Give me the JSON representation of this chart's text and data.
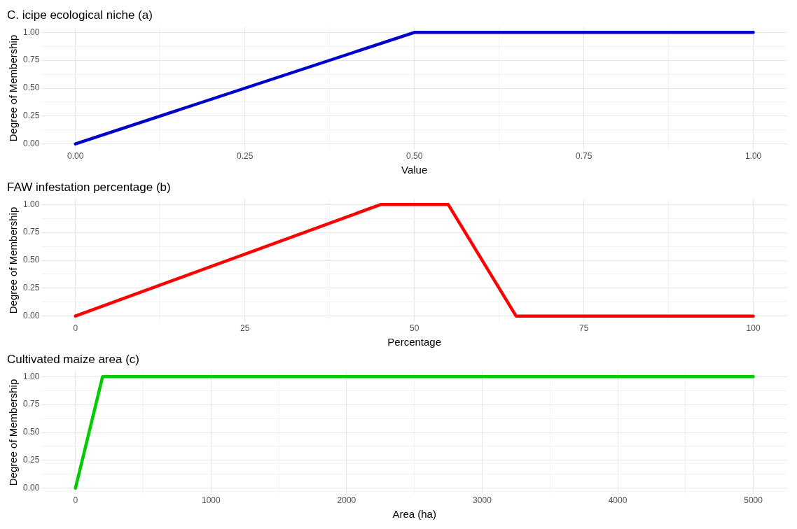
{
  "chart_data": [
    {
      "type": "line",
      "title": "C. icipe ecological niche (a)",
      "xlabel": "Value",
      "ylabel": "Degree of Membership",
      "grid": true,
      "line_style": "solid",
      "marker": "none",
      "series": [
        {
          "color": "#0000cd",
          "x": [
            0,
            0.5,
            1
          ],
          "values": [
            0,
            1,
            1
          ]
        }
      ],
      "xlim": [
        -0.05,
        1.05
      ],
      "xticks": [
        {
          "value": 0,
          "label": "0.00"
        },
        {
          "value": 0.125,
          "label": null
        },
        {
          "value": 0.25,
          "label": "0.25"
        },
        {
          "value": 0.375,
          "label": null
        },
        {
          "value": 0.5,
          "label": "0.50"
        },
        {
          "value": 0.625,
          "label": null
        },
        {
          "value": 0.75,
          "label": "0.75"
        },
        {
          "value": 0.875,
          "label": null
        },
        {
          "value": 1,
          "label": "1.00"
        }
      ],
      "ylim": [
        -0.05,
        1.05
      ],
      "yticks": [
        {
          "value": 0,
          "label": "0.00"
        },
        {
          "value": 0.125,
          "label": null
        },
        {
          "value": 0.25,
          "label": "0.25"
        },
        {
          "value": 0.375,
          "label": null
        },
        {
          "value": 0.5,
          "label": "0.50"
        },
        {
          "value": 0.625,
          "label": null
        },
        {
          "value": 0.75,
          "label": "0.75"
        },
        {
          "value": 0.875,
          "label": null
        },
        {
          "value": 1,
          "label": "1.00"
        }
      ]
    },
    {
      "type": "line",
      "title": "FAW infestation percentage (b)",
      "xlabel": "Percentage",
      "ylabel": "Degree of Membership",
      "grid": true,
      "line_style": "solid",
      "marker": "none",
      "series": [
        {
          "color": "#ff0000",
          "x": [
            0,
            45,
            55,
            65,
            100
          ],
          "values": [
            0,
            1,
            1,
            0,
            0
          ]
        }
      ],
      "xlim": [
        -5,
        105
      ],
      "xticks": [
        0,
        {
          "value": 12.5,
          "label": null
        },
        25,
        {
          "value": 37.5,
          "label": null
        },
        50,
        {
          "value": 62.5,
          "label": null
        },
        75,
        {
          "value": 87.5,
          "label": null
        },
        100
      ],
      "ylim": [
        -0.05,
        1.05
      ],
      "yticks": [
        {
          "value": 0,
          "label": "0.00"
        },
        {
          "value": 0.125,
          "label": null
        },
        {
          "value": 0.25,
          "label": "0.25"
        },
        {
          "value": 0.375,
          "label": null
        },
        {
          "value": 0.5,
          "label": "0.50"
        },
        {
          "value": 0.625,
          "label": null
        },
        {
          "value": 0.75,
          "label": "0.75"
        },
        {
          "value": 0.875,
          "label": null
        },
        {
          "value": 1,
          "label": "1.00"
        }
      ]
    },
    {
      "type": "line",
      "title": "Cultivated maize area (c)",
      "xlabel": "Area (ha)",
      "ylabel": "Degree of Membership",
      "grid": true,
      "line_style": "solid",
      "marker": "none",
      "series": [
        {
          "color": "#00cc00",
          "x": [
            0,
            200,
            5000
          ],
          "values": [
            0,
            1,
            1
          ]
        }
      ],
      "xlim": [
        -250,
        5250
      ],
      "xticks": [
        0,
        {
          "value": 500,
          "label": null
        },
        1000,
        {
          "value": 1500,
          "label": null
        },
        2000,
        {
          "value": 2500,
          "label": null
        },
        3000,
        {
          "value": 3500,
          "label": null
        },
        4000,
        {
          "value": 4500,
          "label": null
        },
        5000
      ],
      "ylim": [
        -0.05,
        1.05
      ],
      "yticks": [
        {
          "value": 0,
          "label": "0.00"
        },
        {
          "value": 0.125,
          "label": null
        },
        {
          "value": 0.25,
          "label": "0.25"
        },
        {
          "value": 0.375,
          "label": null
        },
        {
          "value": 0.5,
          "label": "0.50"
        },
        {
          "value": 0.625,
          "label": null
        },
        {
          "value": 0.75,
          "label": "0.75"
        },
        {
          "value": 0.875,
          "label": null
        },
        {
          "value": 1,
          "label": "1.00"
        }
      ]
    }
  ]
}
